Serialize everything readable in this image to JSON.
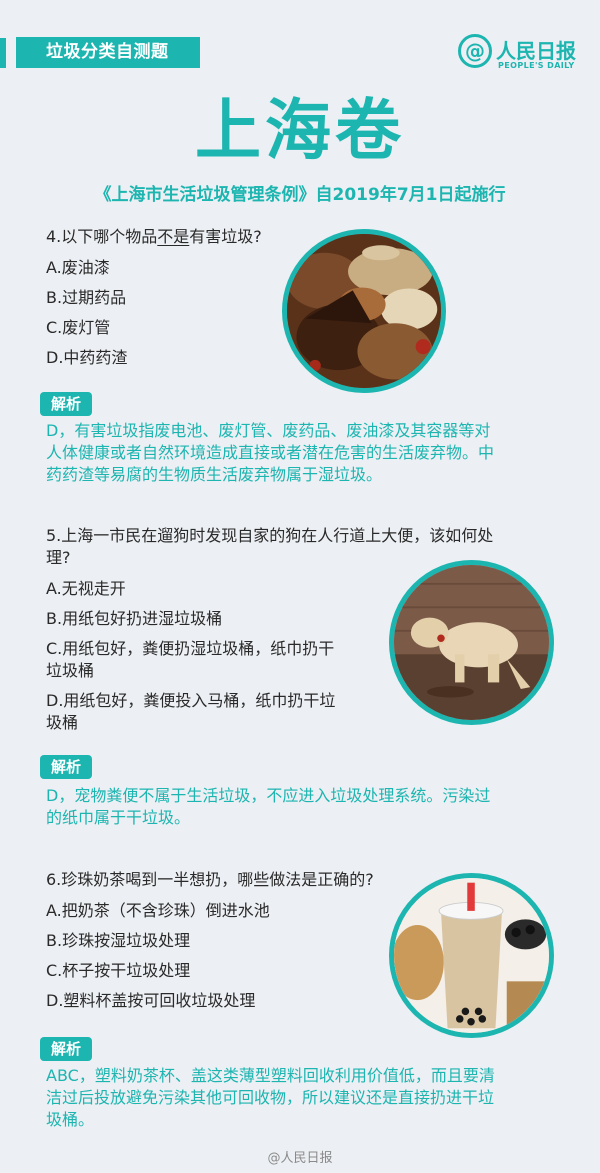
{
  "header": {
    "tag": "垃圾分类自测题",
    "logo_at": "@",
    "logo_name": "人民日报",
    "logo_sub": "PEOPLE'S DAILY"
  },
  "title": "上海卷",
  "subtitle": "《上海市生活垃圾管理条例》自2019年7月1日起施行",
  "q4": {
    "prefix": "4.以下哪个物品",
    "underlined": "不是",
    "suffix": "有害垃圾?",
    "options": [
      "A.废油漆",
      "B.过期药品",
      "C.废灯管",
      "D.中药药渣"
    ],
    "label": "解析",
    "answer": [
      "D，有害垃圾指废电池、废灯管、废药品、废油漆及其容器等对",
      "人体健康或者自然环境造成直接或者潜在危害的生活废弃物。中",
      "药药渣等易腐的生物质生活废弃物属于湿垃圾。"
    ]
  },
  "q5": {
    "question": [
      "5.上海一市民在遛狗时发现自家的狗在人行道上大便，该如何处",
      "理?"
    ],
    "options": [
      "A.无视走开",
      "B.用纸包好扔进湿垃圾桶",
      "C.用纸包好，粪便扔湿垃圾桶，纸巾扔干",
      "垃圾桶",
      "D.用纸包好，粪便投入马桶，纸巾扔干垃",
      "圾桶"
    ],
    "label": "解析",
    "answer": [
      "D，宠物粪便不属于生活垃圾，不应进入垃圾处理系统。污染过",
      "的纸巾属于干垃圾。"
    ]
  },
  "q6": {
    "question": "6.珍珠奶茶喝到一半想扔，哪些做法是正确的?",
    "options": [
      "A.把奶茶（不含珍珠）倒进水池",
      "B.珍珠按湿垃圾处理",
      "C.杯子按干垃圾处理",
      "D.塑料杯盖按可回收垃圾处理"
    ],
    "label": "解析",
    "answer": [
      "ABC，塑料奶茶杯、盖这类薄型塑料回收利用价值低，而且要清",
      "洁过后投放避免污染其他可回收物，所以建议还是直接扔进干垃",
      "圾桶。"
    ]
  },
  "footer": "@人民日报",
  "colors": {
    "accent": "#1db5b0",
    "background": "#eceff3"
  }
}
